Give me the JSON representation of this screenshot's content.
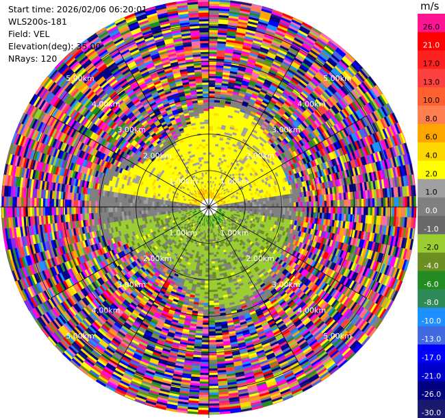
{
  "header": {
    "start_time": "Start time: 2026/02/06 06:20:01",
    "instrument": "WLS200s-181",
    "field": "Field: VEL",
    "elevation": "Elevation(deg): 35.00",
    "nrays": "NRays: 120"
  },
  "colorbar": {
    "unit": "m/s",
    "ticks": [
      "26.0",
      "21.0",
      "17.0",
      "13.0",
      "10.0",
      "8.0",
      "6.0",
      "4.0",
      "2.0",
      "1.0",
      "0.0",
      "-1.0",
      "-2.0",
      "-4.0",
      "-6.0",
      "-8.0",
      "-10.0",
      "-13.0",
      "-17.0",
      "-21.0",
      "-26.0",
      "-30.0"
    ],
    "colors": [
      "#ff1493",
      "#ff0000",
      "#ff2020",
      "#ff4040",
      "#ff6030",
      "#ff7f50",
      "#ffa500",
      "#ffd700",
      "#ffff00",
      "#a0a0a0",
      "#808080",
      "#696969",
      "#9acd32",
      "#6b8e23",
      "#228b22",
      "#2e8b57",
      "#1e90ff",
      "#4169e1",
      "#0000ff",
      "#0000cd",
      "#000080",
      "#191970"
    ]
  },
  "chart_data": {
    "type": "ppi",
    "title": "",
    "field": "VEL",
    "unit": "m/s",
    "elevation_deg": 35.0,
    "nrays": 120,
    "max_range_km": 5.7,
    "range_rings_km": [
      1.0,
      2.0,
      3.0,
      4.0,
      5.0
    ],
    "ring_labels": [
      "1.00km",
      "2.00km",
      "3.00km",
      "4.00km",
      "5.00km"
    ],
    "radials_deg": [
      0,
      30,
      60,
      90,
      120,
      150,
      180,
      210,
      240,
      270,
      300,
      330
    ],
    "color_scale": {
      "boundaries": [
        -30.0,
        -26.0,
        -21.0,
        -17.0,
        -13.0,
        -10.0,
        -8.0,
        -6.0,
        -4.0,
        -2.0,
        -1.0,
        0.0,
        1.0,
        2.0,
        4.0,
        6.0,
        8.0,
        10.0,
        13.0,
        17.0,
        21.0,
        26.0
      ],
      "labels": [
        "26.0",
        "21.0",
        "17.0",
        "13.0",
        "10.0",
        "8.0",
        "6.0",
        "4.0",
        "2.0",
        "1.0",
        "0.0",
        "-1.0",
        "-2.0",
        "-4.0",
        "-6.0",
        "-8.0",
        "-10.0",
        "-13.0",
        "-17.0",
        "-21.0",
        "-26.0",
        "-30.0"
      ]
    },
    "pattern": {
      "near_north_sector": "positive velocity (yellow, ~2.0-4.0 m/s) out to ~2.5 km",
      "near_south_sector": "negative velocity (olive/green, ~-2.0 to -4.0 m/s) out to ~2.5 km",
      "transition_band": "near-zero velocity (gray) around east-west axis",
      "beyond_2.5km": "noise (random multicolor values)"
    }
  }
}
